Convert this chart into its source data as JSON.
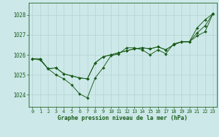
{
  "bg_color": "#cce8e8",
  "grid_color": "#b8d4d4",
  "line_color": "#1a5c1a",
  "marker_color": "#1a5c1a",
  "xlabel": "Graphe pression niveau de la mer (hPa)",
  "xlim": [
    -0.5,
    23.5
  ],
  "ylim": [
    1023.4,
    1028.6
  ],
  "yticks": [
    1024,
    1025,
    1026,
    1027,
    1028
  ],
  "xticks": [
    0,
    1,
    2,
    3,
    4,
    5,
    6,
    7,
    8,
    9,
    10,
    11,
    12,
    13,
    14,
    15,
    16,
    17,
    18,
    19,
    20,
    21,
    22,
    23
  ],
  "series": [
    [
      1025.8,
      1025.8,
      1025.3,
      1025.0,
      1024.8,
      1024.5,
      1024.05,
      1023.85,
      1024.85,
      1025.35,
      1025.95,
      1026.05,
      1026.35,
      1026.35,
      1026.25,
      1026.0,
      1026.25,
      1026.05,
      1026.55,
      1026.65,
      1026.65,
      1027.35,
      1027.75,
      1028.05
    ],
    [
      1025.8,
      1025.75,
      1025.3,
      1025.35,
      1025.05,
      1024.95,
      1024.85,
      1024.8,
      1025.6,
      1025.9,
      1026.0,
      1026.1,
      1026.2,
      1026.3,
      1026.35,
      1026.3,
      1026.4,
      1026.25,
      1026.5,
      1026.65,
      1026.65,
      1027.1,
      1027.45,
      1028.05
    ],
    [
      1025.8,
      1025.75,
      1025.3,
      1025.35,
      1025.05,
      1024.95,
      1024.85,
      1024.8,
      1025.6,
      1025.9,
      1026.0,
      1026.1,
      1026.2,
      1026.3,
      1026.35,
      1026.3,
      1026.4,
      1026.25,
      1026.5,
      1026.65,
      1026.65,
      1026.95,
      1027.15,
      1028.05
    ]
  ]
}
